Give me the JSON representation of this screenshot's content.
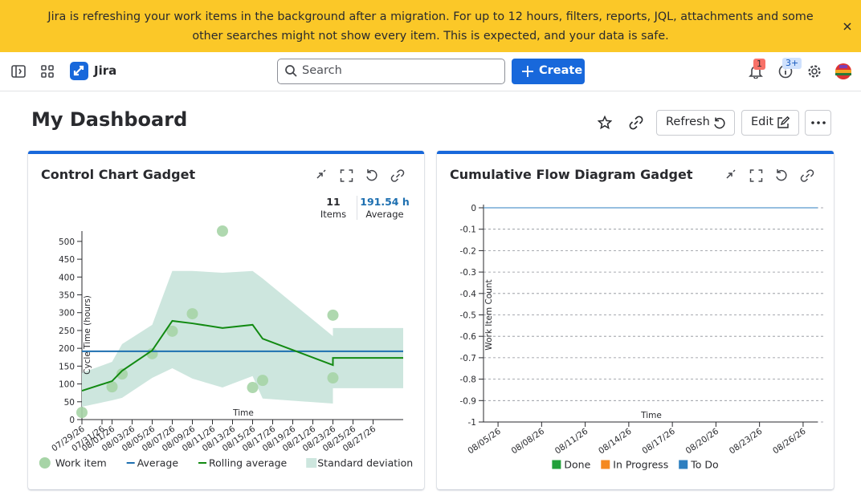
{
  "banner": {
    "text": "Jira is refreshing your work items in the background after a migration. For up to 12 hours, filters, reports, JQL, attachments and some other searches might not show every item. This is expected, and your data is safe."
  },
  "nav": {
    "product": "Jira",
    "search_placeholder": "Search",
    "create": "Create",
    "notifications_badge": "1",
    "help_badge": "3+"
  },
  "header": {
    "title": "My Dashboard",
    "refresh": "Refresh",
    "edit": "Edit"
  },
  "chart_data": [
    {
      "type": "control",
      "title": "Control Chart Gadget",
      "summary": {
        "count": 11,
        "count_caption": "Items",
        "average": "191.54 h",
        "average_caption": "Average"
      },
      "x_label": "Time",
      "y_label": "Cycle Time (hours)",
      "grid": false,
      "xlim": [
        "07/29/26",
        "08/30/26"
      ],
      "xticks": [
        "07/29/26",
        "07/31/26",
        "08/01/26",
        "08/03/26",
        "08/05/26",
        "08/07/26",
        "08/09/26",
        "08/11/26",
        "08/13/26",
        "08/15/26",
        "08/17/26",
        "08/19/26",
        "08/21/26",
        "08/23/26",
        "08/25/26",
        "08/27/26"
      ],
      "ylim": [
        0,
        520
      ],
      "yticks": [
        0,
        50,
        100,
        150,
        200,
        250,
        300,
        350,
        400,
        450,
        500
      ],
      "series": [
        {
          "name": "Work item",
          "kind": "points",
          "color": "#a6d4a6",
          "x": [
            "07/29/26",
            "08/01/26",
            "08/02/26",
            "08/05/26",
            "08/07/26",
            "08/09/26",
            "08/12/26",
            "08/15/26",
            "08/16/26",
            "08/23/26",
            "08/23/26"
          ],
          "values": [
            20,
            92,
            128,
            185,
            248,
            297,
            529,
            90,
            110,
            293,
            117
          ]
        },
        {
          "name": "Average",
          "kind": "line",
          "color": "#1d6fb0",
          "x": [
            "07/29/26",
            "08/30/26"
          ],
          "values": [
            191.54,
            191.54
          ]
        },
        {
          "name": "Rolling average",
          "kind": "line",
          "color": "#128a12",
          "x": [
            "07/29/26",
            "08/01/26",
            "08/02/26",
            "08/05/26",
            "08/07/26",
            "08/09/26",
            "08/12/26",
            "08/15/26",
            "08/16/26",
            "08/23/26",
            "08/23/26",
            "08/30/26"
          ],
          "values": [
            81,
            108,
            137,
            194,
            277,
            270,
            257,
            266,
            227,
            153,
            173,
            173
          ]
        },
        {
          "name": "Standard deviation",
          "kind": "band",
          "color": "#cde6de",
          "x": [
            "07/29/26",
            "08/01/26",
            "08/02/26",
            "08/05/26",
            "08/07/26",
            "08/09/26",
            "08/12/26",
            "08/15/26",
            "08/16/26",
            "08/23/26",
            "08/23/26",
            "08/30/26"
          ],
          "upper": [
            131,
            162,
            212,
            266,
            417,
            417,
            412,
            417,
            396,
            234,
            257,
            257
          ],
          "lower": [
            36,
            54,
            61,
            117,
            144,
            115,
            90,
            122,
            59,
            45,
            88,
            88
          ]
        }
      ]
    },
    {
      "type": "area",
      "title": "Cumulative Flow Diagram Gadget",
      "x_label": "Time",
      "y_label": "Work Item Count",
      "grid": true,
      "xlim": [
        "08/04/26",
        "08/27/26"
      ],
      "xticks": [
        "08/05/26",
        "08/08/26",
        "08/11/26",
        "08/14/26",
        "08/17/26",
        "08/20/26",
        "08/23/26",
        "08/26/26"
      ],
      "ylim": [
        -1,
        0
      ],
      "yticks": [
        0,
        -0.1,
        -0.2,
        -0.3,
        -0.4,
        -0.5,
        -0.6,
        -0.7,
        -0.8,
        -0.9,
        -1
      ],
      "x": [
        "08/04/26",
        "08/27/26"
      ],
      "series": [
        {
          "name": "Done",
          "color": "#22a03a",
          "values": [
            0,
            0
          ]
        },
        {
          "name": "In Progress",
          "color": "#f5891f",
          "values": [
            0,
            0
          ]
        },
        {
          "name": "To Do",
          "color": "#2d7fc0",
          "values": [
            0,
            0
          ]
        }
      ]
    }
  ]
}
